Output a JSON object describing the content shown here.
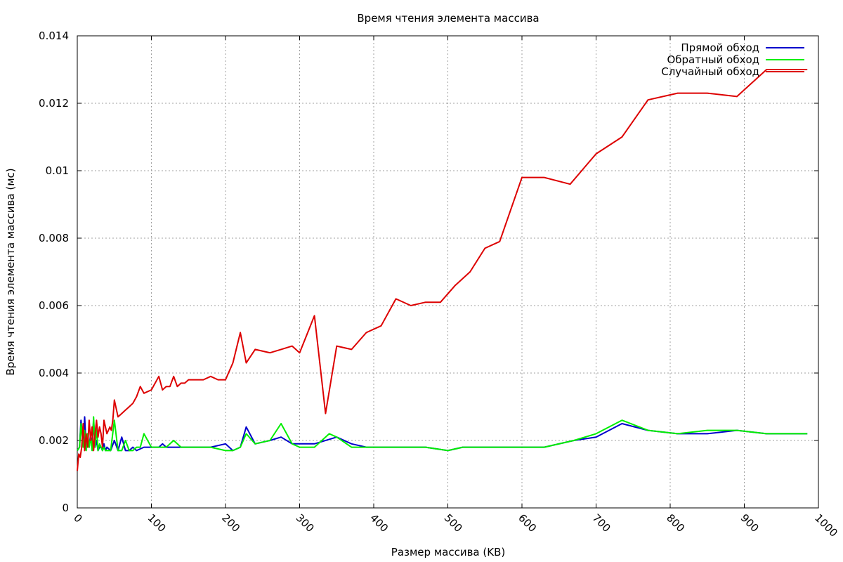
{
  "chart_data": {
    "type": "line",
    "title": "Время чтения элемента массива",
    "xlabel": "Размер массива (KB)",
    "ylabel": "Время чтения элемента массива (мс)",
    "xlim": [
      0,
      1000
    ],
    "ylim": [
      0,
      0.014
    ],
    "xticks": [
      "0",
      "100",
      "200",
      "300",
      "400",
      "500",
      "600",
      "700",
      "800",
      "900",
      "1000"
    ],
    "yticks": [
      "0",
      "0.002",
      "0.004",
      "0.006",
      "0.008",
      "0.01",
      "0.012",
      "0.014"
    ],
    "grid": true,
    "legend_position": "top-right",
    "series": [
      {
        "name": "Прямой обход",
        "color": "#0000cc",
        "x": [
          0,
          3,
          5,
          8,
          10,
          12,
          14,
          16,
          18,
          20,
          22,
          24,
          26,
          28,
          30,
          32,
          34,
          36,
          38,
          40,
          45,
          50,
          55,
          60,
          65,
          70,
          75,
          80,
          90,
          100,
          110,
          115,
          120,
          130,
          140,
          150,
          160,
          180,
          200,
          210,
          220,
          228,
          240,
          260,
          275,
          290,
          300,
          320,
          350,
          370,
          390,
          410,
          430,
          450,
          470,
          500,
          520,
          550,
          580,
          600,
          630,
          670,
          700,
          735,
          770,
          810,
          850,
          890,
          930,
          960,
          985
        ],
        "y": [
          0.0017,
          0.0018,
          0.0026,
          0.0019,
          0.0027,
          0.0018,
          0.002,
          0.0018,
          0.0022,
          0.0018,
          0.0026,
          0.0018,
          0.002,
          0.0017,
          0.0018,
          0.0018,
          0.0017,
          0.0019,
          0.0017,
          0.0018,
          0.0017,
          0.002,
          0.0017,
          0.0021,
          0.0017,
          0.0017,
          0.0018,
          0.0017,
          0.0018,
          0.0018,
          0.0018,
          0.0019,
          0.0018,
          0.0018,
          0.0018,
          0.0018,
          0.0018,
          0.0018,
          0.0019,
          0.0017,
          0.0018,
          0.0024,
          0.0019,
          0.002,
          0.0021,
          0.0019,
          0.0019,
          0.0019,
          0.0021,
          0.0019,
          0.0018,
          0.0018,
          0.0018,
          0.0018,
          0.0018,
          0.0017,
          0.0018,
          0.0018,
          0.0018,
          0.0018,
          0.0018,
          0.002,
          0.0021,
          0.0025,
          0.0023,
          0.0022,
          0.0022,
          0.0023,
          0.0022,
          0.0022,
          0.0022
        ]
      },
      {
        "name": "Обратный обход",
        "color": "#00ee00",
        "x": [
          0,
          3,
          5,
          8,
          10,
          12,
          14,
          16,
          18,
          20,
          22,
          24,
          26,
          28,
          30,
          32,
          34,
          36,
          38,
          40,
          45,
          50,
          55,
          60,
          65,
          70,
          75,
          80,
          85,
          90,
          100,
          110,
          120,
          130,
          140,
          150,
          160,
          180,
          200,
          210,
          220,
          228,
          240,
          260,
          275,
          290,
          300,
          320,
          340,
          350,
          370,
          390,
          410,
          430,
          450,
          470,
          500,
          520,
          550,
          580,
          600,
          630,
          670,
          700,
          735,
          770,
          810,
          850,
          890,
          930,
          960,
          985
        ],
        "y": [
          0.0017,
          0.0018,
          0.0025,
          0.0018,
          0.0023,
          0.0017,
          0.0022,
          0.0018,
          0.0021,
          0.0017,
          0.0027,
          0.0018,
          0.0024,
          0.0017,
          0.0019,
          0.0018,
          0.0017,
          0.0018,
          0.0017,
          0.0017,
          0.0017,
          0.0026,
          0.0017,
          0.0017,
          0.002,
          0.0017,
          0.0017,
          0.0018,
          0.0018,
          0.0022,
          0.0018,
          0.0018,
          0.0018,
          0.002,
          0.0018,
          0.0018,
          0.0018,
          0.0018,
          0.0017,
          0.0017,
          0.0018,
          0.0022,
          0.0019,
          0.002,
          0.0025,
          0.0019,
          0.0018,
          0.0018,
          0.0022,
          0.0021,
          0.0018,
          0.0018,
          0.0018,
          0.0018,
          0.0018,
          0.0018,
          0.0017,
          0.0018,
          0.0018,
          0.0018,
          0.0018,
          0.0018,
          0.002,
          0.0022,
          0.0026,
          0.0023,
          0.0022,
          0.0023,
          0.0023,
          0.0022,
          0.0022,
          0.0022
        ]
      },
      {
        "name": "Случайный обход",
        "color": "#dd0000",
        "x": [
          0,
          2,
          4,
          6,
          8,
          10,
          12,
          14,
          16,
          18,
          20,
          22,
          24,
          26,
          28,
          30,
          32,
          34,
          36,
          38,
          40,
          42,
          44,
          46,
          48,
          50,
          55,
          60,
          65,
          70,
          75,
          80,
          85,
          90,
          100,
          110,
          115,
          120,
          125,
          130,
          135,
          140,
          145,
          150,
          160,
          170,
          180,
          190,
          200,
          210,
          220,
          228,
          240,
          260,
          275,
          290,
          300,
          320,
          335,
          350,
          370,
          390,
          410,
          430,
          450,
          470,
          490,
          510,
          530,
          550,
          570,
          600,
          630,
          665,
          700,
          735,
          770,
          810,
          850,
          890,
          930,
          985
        ],
        "y": [
          0.0011,
          0.0016,
          0.0015,
          0.0018,
          0.0025,
          0.0017,
          0.0022,
          0.0018,
          0.0026,
          0.002,
          0.0024,
          0.0017,
          0.0022,
          0.0026,
          0.0021,
          0.0024,
          0.0022,
          0.0018,
          0.0026,
          0.0024,
          0.0022,
          0.0023,
          0.0024,
          0.0023,
          0.0026,
          0.0032,
          0.0027,
          0.0028,
          0.0029,
          0.003,
          0.0031,
          0.0033,
          0.0036,
          0.0034,
          0.0035,
          0.0039,
          0.0035,
          0.0036,
          0.0036,
          0.0039,
          0.0036,
          0.0037,
          0.0037,
          0.0038,
          0.0038,
          0.0038,
          0.0039,
          0.0038,
          0.0038,
          0.0043,
          0.0052,
          0.0043,
          0.0047,
          0.0046,
          0.0047,
          0.0048,
          0.0046,
          0.0057,
          0.0028,
          0.0048,
          0.0047,
          0.0052,
          0.0054,
          0.0062,
          0.006,
          0.0061,
          0.0061,
          0.0066,
          0.007,
          0.0077,
          0.0079,
          0.0098,
          0.0098,
          0.0096,
          0.0105,
          0.011,
          0.0121,
          0.0123,
          0.0123,
          0.0122,
          0.013,
          0.013
        ]
      }
    ]
  }
}
